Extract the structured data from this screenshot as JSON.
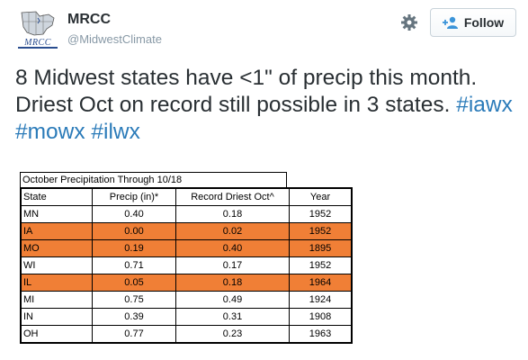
{
  "account": {
    "name": "MRCC",
    "handle": "@MidwestClimate",
    "avatar_label": "MRCC"
  },
  "actions": {
    "follow_label": "Follow"
  },
  "tweet": {
    "text": "8 Midwest states have <1\" of precip this month. Driest Oct on record still possible in 3 states.",
    "hashtags": [
      "#iawx",
      "#mowx",
      "#ilwx"
    ]
  },
  "table": {
    "title": "October Precipitation Through 10/18",
    "headers": [
      "State",
      "Precip (in)*",
      "Record Driest Oct^",
      "Year"
    ],
    "highlight_color": "#f07f36",
    "rows": [
      {
        "state": "MN",
        "precip": "0.40",
        "record": "0.18",
        "year": "1952",
        "highlight": false
      },
      {
        "state": "IA",
        "precip": "0.00",
        "record": "0.02",
        "year": "1952",
        "highlight": true
      },
      {
        "state": "MO",
        "precip": "0.19",
        "record": "0.40",
        "year": "1895",
        "highlight": true
      },
      {
        "state": "WI",
        "precip": "0.71",
        "record": "0.17",
        "year": "1952",
        "highlight": false
      },
      {
        "state": "IL",
        "precip": "0.05",
        "record": "0.18",
        "year": "1964",
        "highlight": true
      },
      {
        "state": "MI",
        "precip": "0.75",
        "record": "0.49",
        "year": "1924",
        "highlight": false
      },
      {
        "state": "IN",
        "precip": "0.39",
        "record": "0.31",
        "year": "1908",
        "highlight": false
      },
      {
        "state": "OH",
        "precip": "0.77",
        "record": "0.23",
        "year": "1963",
        "highlight": false
      }
    ]
  },
  "icons": {
    "settings": "gear-icon",
    "follow": "person-add-icon",
    "avatar": "midwest-map-logo"
  }
}
